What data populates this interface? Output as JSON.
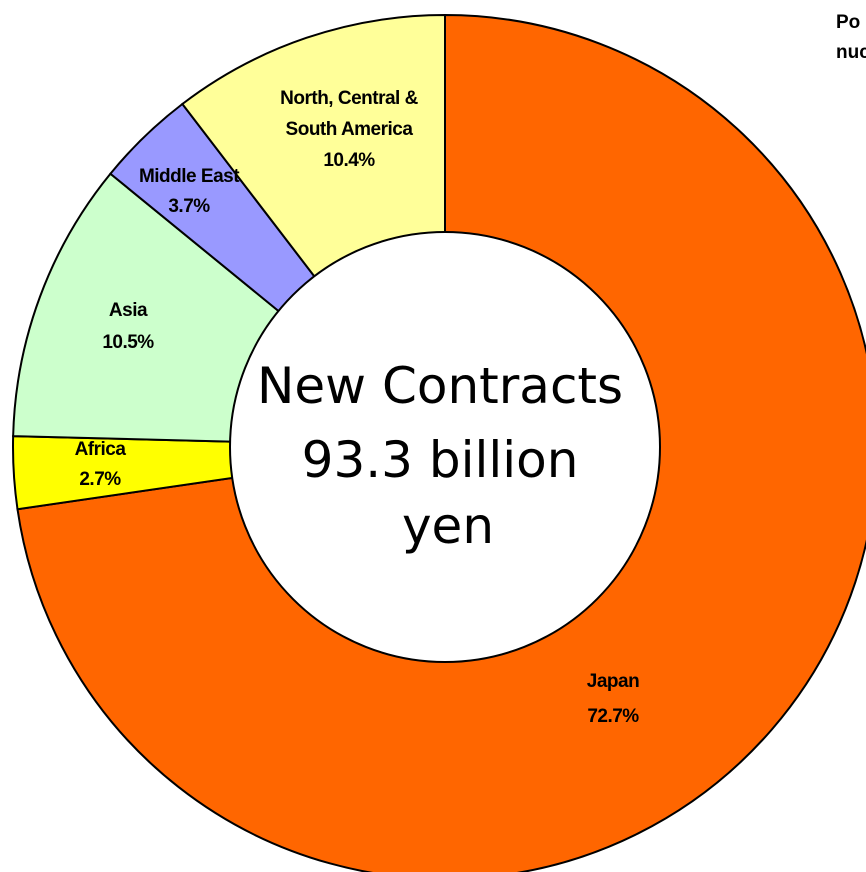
{
  "corner_note": [
    "Po",
    "nuc"
  ],
  "chart_data": {
    "type": "pie",
    "donut": true,
    "center_label": [
      "New Contracts",
      "93.3 billion",
      "yen"
    ],
    "slices": [
      {
        "label": "Japan",
        "value": 72.7,
        "display": "72.7%",
        "color": "#ff6600"
      },
      {
        "label": "Africa",
        "value": 2.7,
        "display": "2.7%",
        "color": "#ffff00"
      },
      {
        "label": "Asia",
        "value": 10.5,
        "display": "10.5%",
        "color": "#ccffcc"
      },
      {
        "label": "Middle East",
        "value": 3.7,
        "display": "3.7%",
        "color": "#9999ff"
      },
      {
        "label": "North, Central & South America",
        "value": 10.4,
        "display": "10.4%",
        "color": "#ffff99"
      }
    ],
    "legend": "none"
  }
}
